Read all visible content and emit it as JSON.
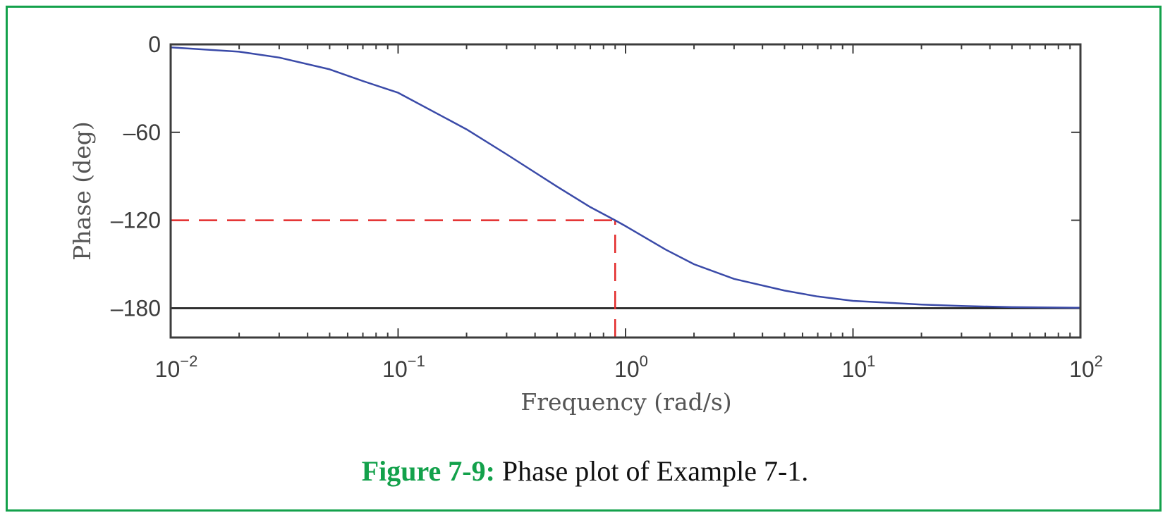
{
  "caption": {
    "figure_number": "Figure 7-9:",
    "text": "Phase plot of Example 7-1."
  },
  "colors": {
    "frame": "#13a14b",
    "curve": "#3a4aa8",
    "guide": "#e32b2b",
    "asymptote": "#111111",
    "axes": "#3c3c3c"
  },
  "chart_data": {
    "type": "line",
    "title": "",
    "xlabel": "Frequency (rad/s)",
    "ylabel": "Phase (deg)",
    "xscale": "log",
    "xlim": [
      0.01,
      100
    ],
    "ylim": [
      -200,
      0
    ],
    "x_ticks": [
      {
        "base": "10",
        "exp": "−2",
        "value": 0.01
      },
      {
        "base": "10",
        "exp": "−1",
        "value": 0.1
      },
      {
        "base": "10",
        "exp": "0",
        "value": 1
      },
      {
        "base": "10",
        "exp": "1",
        "value": 10
      },
      {
        "base": "10",
        "exp": "2",
        "value": 100
      }
    ],
    "y_ticks": [
      {
        "label": "0",
        "value": 0
      },
      {
        "label": "–60",
        "value": -60
      },
      {
        "label": "–120",
        "value": -120
      },
      {
        "label": "–180",
        "value": -180
      }
    ],
    "grid": false,
    "series": [
      {
        "x": [
          0.01,
          0.02,
          0.03,
          0.05,
          0.07,
          0.1,
          0.2,
          0.3,
          0.5,
          0.7,
          0.9,
          1,
          1.5,
          2,
          3,
          5,
          7,
          10,
          20,
          30,
          50,
          100
        ],
        "y": [
          -2,
          -5,
          -9,
          -17,
          -25,
          -33,
          -58,
          -75,
          -97,
          -111,
          -120,
          -124,
          -140,
          -150,
          -160,
          -168,
          -172,
          -175,
          -177.5,
          -178.5,
          -179.3,
          -179.7
        ],
        "style": "solid"
      }
    ],
    "annotations": [
      {
        "type": "hline",
        "y": -180,
        "style": "solid",
        "color": "#111111"
      },
      {
        "type": "hsegment",
        "y": -120,
        "x_from": 0.01,
        "x_to": 0.9,
        "style": "dashed",
        "color": "#e32b2b"
      },
      {
        "type": "vsegment",
        "x": 0.9,
        "y_from": -200,
        "y_to": -120,
        "style": "dashed",
        "color": "#e32b2b"
      }
    ]
  }
}
